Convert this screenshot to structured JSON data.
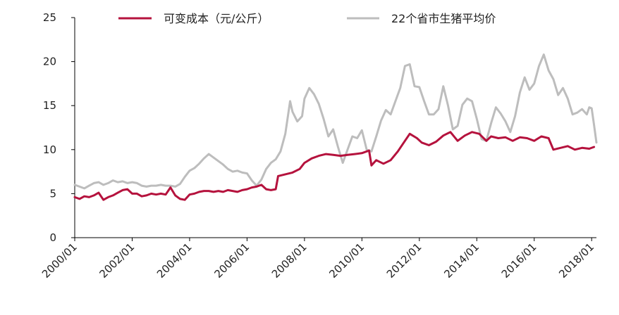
{
  "chart_data": {
    "type": "line",
    "title": "",
    "xlabel": "",
    "ylabel": "",
    "ylim": [
      0,
      25
    ],
    "yticks": [
      0,
      5,
      10,
      15,
      20,
      25
    ],
    "xlim": [
      "2000/01",
      "2018/03"
    ],
    "xticks": [
      "2000/01",
      "2002/01",
      "2004/01",
      "2006/01",
      "2008/01",
      "2010/01",
      "2012/01",
      "2014/01",
      "2016/01",
      "2018/01"
    ],
    "grid": false,
    "legend_position": "top",
    "series": [
      {
        "name": "可变成本（元/公斤）",
        "color": "#b5123d",
        "points": [
          [
            "2000/01",
            4.6
          ],
          [
            "2000/03",
            4.4
          ],
          [
            "2000/05",
            4.7
          ],
          [
            "2000/07",
            4.6
          ],
          [
            "2000/09",
            4.8
          ],
          [
            "2000/11",
            5.1
          ],
          [
            "2001/01",
            4.3
          ],
          [
            "2001/03",
            4.6
          ],
          [
            "2001/05",
            4.8
          ],
          [
            "2001/07",
            5.1
          ],
          [
            "2001/09",
            5.4
          ],
          [
            "2001/11",
            5.5
          ],
          [
            "2002/01",
            5.0
          ],
          [
            "2002/03",
            5.0
          ],
          [
            "2002/05",
            4.7
          ],
          [
            "2002/07",
            4.8
          ],
          [
            "2002/09",
            5.0
          ],
          [
            "2002/11",
            4.9
          ],
          [
            "2003/01",
            5.0
          ],
          [
            "2003/03",
            4.9
          ],
          [
            "2003/05",
            5.7
          ],
          [
            "2003/07",
            4.8
          ],
          [
            "2003/09",
            4.4
          ],
          [
            "2003/11",
            4.3
          ],
          [
            "2004/01",
            4.9
          ],
          [
            "2004/03",
            5.0
          ],
          [
            "2004/05",
            5.2
          ],
          [
            "2004/07",
            5.3
          ],
          [
            "2004/09",
            5.3
          ],
          [
            "2004/11",
            5.2
          ],
          [
            "2005/01",
            5.3
          ],
          [
            "2005/03",
            5.2
          ],
          [
            "2005/05",
            5.4
          ],
          [
            "2005/07",
            5.3
          ],
          [
            "2005/09",
            5.2
          ],
          [
            "2005/11",
            5.4
          ],
          [
            "2006/01",
            5.5
          ],
          [
            "2006/03",
            5.7
          ],
          [
            "2006/05",
            5.8
          ],
          [
            "2006/07",
            6.0
          ],
          [
            "2006/09",
            5.5
          ],
          [
            "2006/11",
            5.4
          ],
          [
            "2007/01",
            5.5
          ],
          [
            "2007/02",
            7.0
          ],
          [
            "2007/05",
            7.2
          ],
          [
            "2007/08",
            7.4
          ],
          [
            "2007/11",
            7.8
          ],
          [
            "2008/01",
            8.5
          ],
          [
            "2008/04",
            9.0
          ],
          [
            "2008/07",
            9.3
          ],
          [
            "2008/10",
            9.5
          ],
          [
            "2009/01",
            9.4
          ],
          [
            "2009/04",
            9.3
          ],
          [
            "2009/07",
            9.4
          ],
          [
            "2009/10",
            9.5
          ],
          [
            "2010/01",
            9.6
          ],
          [
            "2010/04",
            9.9
          ],
          [
            "2010/05",
            8.2
          ],
          [
            "2010/07",
            8.8
          ],
          [
            "2010/10",
            8.4
          ],
          [
            "2011/01",
            8.8
          ],
          [
            "2011/04",
            9.8
          ],
          [
            "2011/07",
            11.0
          ],
          [
            "2011/09",
            11.8
          ],
          [
            "2011/12",
            11.3
          ],
          [
            "2012/02",
            10.8
          ],
          [
            "2012/05",
            10.5
          ],
          [
            "2012/08",
            10.9
          ],
          [
            "2012/11",
            11.6
          ],
          [
            "2013/02",
            12.0
          ],
          [
            "2013/05",
            11.0
          ],
          [
            "2013/08",
            11.6
          ],
          [
            "2013/11",
            12.0
          ],
          [
            "2014/02",
            11.8
          ],
          [
            "2014/05",
            11.0
          ],
          [
            "2014/07",
            11.5
          ],
          [
            "2014/10",
            11.3
          ],
          [
            "2015/01",
            11.4
          ],
          [
            "2015/04",
            11.0
          ],
          [
            "2015/07",
            11.4
          ],
          [
            "2015/10",
            11.3
          ],
          [
            "2016/01",
            11.0
          ],
          [
            "2016/04",
            11.5
          ],
          [
            "2016/07",
            11.3
          ],
          [
            "2016/09",
            10.0
          ],
          [
            "2016/12",
            10.2
          ],
          [
            "2017/03",
            10.4
          ],
          [
            "2017/06",
            10.0
          ],
          [
            "2017/09",
            10.2
          ],
          [
            "2017/12",
            10.1
          ],
          [
            "2018/02",
            10.3
          ]
        ]
      },
      {
        "name": "22个省市生猪平均价",
        "color": "#bdbdbd",
        "points": [
          [
            "2000/01",
            6.0
          ],
          [
            "2000/03",
            5.8
          ],
          [
            "2000/05",
            5.6
          ],
          [
            "2000/07",
            5.9
          ],
          [
            "2000/09",
            6.2
          ],
          [
            "2000/11",
            6.3
          ],
          [
            "2001/01",
            6.0
          ],
          [
            "2001/03",
            6.2
          ],
          [
            "2001/05",
            6.5
          ],
          [
            "2001/07",
            6.3
          ],
          [
            "2001/09",
            6.4
          ],
          [
            "2001/11",
            6.2
          ],
          [
            "2002/01",
            6.3
          ],
          [
            "2002/03",
            6.2
          ],
          [
            "2002/05",
            5.9
          ],
          [
            "2002/07",
            5.8
          ],
          [
            "2002/09",
            5.9
          ],
          [
            "2002/11",
            5.9
          ],
          [
            "2003/01",
            6.0
          ],
          [
            "2003/03",
            5.9
          ],
          [
            "2003/05",
            5.9
          ],
          [
            "2003/07",
            5.8
          ],
          [
            "2003/09",
            6.1
          ],
          [
            "2003/11",
            6.9
          ],
          [
            "2004/01",
            7.6
          ],
          [
            "2004/03",
            7.9
          ],
          [
            "2004/05",
            8.4
          ],
          [
            "2004/07",
            9.0
          ],
          [
            "2004/09",
            9.5
          ],
          [
            "2004/11",
            9.1
          ],
          [
            "2005/01",
            8.7
          ],
          [
            "2005/03",
            8.3
          ],
          [
            "2005/05",
            7.8
          ],
          [
            "2005/07",
            7.5
          ],
          [
            "2005/09",
            7.6
          ],
          [
            "2005/11",
            7.4
          ],
          [
            "2006/01",
            7.3
          ],
          [
            "2006/03",
            6.5
          ],
          [
            "2006/05",
            5.9
          ],
          [
            "2006/07",
            6.6
          ],
          [
            "2006/09",
            7.8
          ],
          [
            "2006/11",
            8.5
          ],
          [
            "2007/01",
            8.9
          ],
          [
            "2007/03",
            9.8
          ],
          [
            "2007/05",
            11.8
          ],
          [
            "2007/07",
            15.5
          ],
          [
            "2007/08",
            14.3
          ],
          [
            "2007/10",
            13.2
          ],
          [
            "2007/12",
            13.8
          ],
          [
            "2008/01",
            15.8
          ],
          [
            "2008/03",
            17.0
          ],
          [
            "2008/05",
            16.3
          ],
          [
            "2008/07",
            15.2
          ],
          [
            "2008/09",
            13.5
          ],
          [
            "2008/11",
            11.5
          ],
          [
            "2009/01",
            12.3
          ],
          [
            "2009/03",
            10.3
          ],
          [
            "2009/05",
            8.5
          ],
          [
            "2009/07",
            10.0
          ],
          [
            "2009/09",
            11.5
          ],
          [
            "2009/11",
            11.3
          ],
          [
            "2010/01",
            12.2
          ],
          [
            "2010/03",
            10.0
          ],
          [
            "2010/05",
            9.8
          ],
          [
            "2010/07",
            11.5
          ],
          [
            "2010/09",
            13.3
          ],
          [
            "2010/11",
            14.5
          ],
          [
            "2011/01",
            14.0
          ],
          [
            "2011/03",
            15.5
          ],
          [
            "2011/05",
            17.0
          ],
          [
            "2011/07",
            19.5
          ],
          [
            "2011/09",
            19.7
          ],
          [
            "2011/11",
            17.2
          ],
          [
            "2012/01",
            17.1
          ],
          [
            "2012/03",
            15.5
          ],
          [
            "2012/05",
            14.0
          ],
          [
            "2012/07",
            14.0
          ],
          [
            "2012/09",
            14.6
          ],
          [
            "2012/11",
            17.2
          ],
          [
            "2013/01",
            15.0
          ],
          [
            "2013/03",
            12.3
          ],
          [
            "2013/05",
            12.7
          ],
          [
            "2013/07",
            15.1
          ],
          [
            "2013/09",
            15.8
          ],
          [
            "2013/11",
            15.5
          ],
          [
            "2014/01",
            13.5
          ],
          [
            "2014/03",
            11.2
          ],
          [
            "2014/05",
            11.0
          ],
          [
            "2014/07",
            13.0
          ],
          [
            "2014/09",
            14.8
          ],
          [
            "2014/11",
            14.1
          ],
          [
            "2015/01",
            13.2
          ],
          [
            "2015/03",
            12.0
          ],
          [
            "2015/05",
            13.8
          ],
          [
            "2015/07",
            16.5
          ],
          [
            "2015/09",
            18.2
          ],
          [
            "2015/11",
            16.8
          ],
          [
            "2016/01",
            17.5
          ],
          [
            "2016/03",
            19.5
          ],
          [
            "2016/05",
            20.8
          ],
          [
            "2016/07",
            19.0
          ],
          [
            "2016/09",
            18.0
          ],
          [
            "2016/11",
            16.2
          ],
          [
            "2017/01",
            17.0
          ],
          [
            "2017/03",
            15.8
          ],
          [
            "2017/05",
            14.0
          ],
          [
            "2017/07",
            14.2
          ],
          [
            "2017/09",
            14.6
          ],
          [
            "2017/11",
            14.0
          ],
          [
            "2017/12",
            14.8
          ],
          [
            "2018/01",
            14.7
          ],
          [
            "2018/02",
            12.8
          ],
          [
            "2018/03",
            10.8
          ]
        ]
      }
    ]
  }
}
